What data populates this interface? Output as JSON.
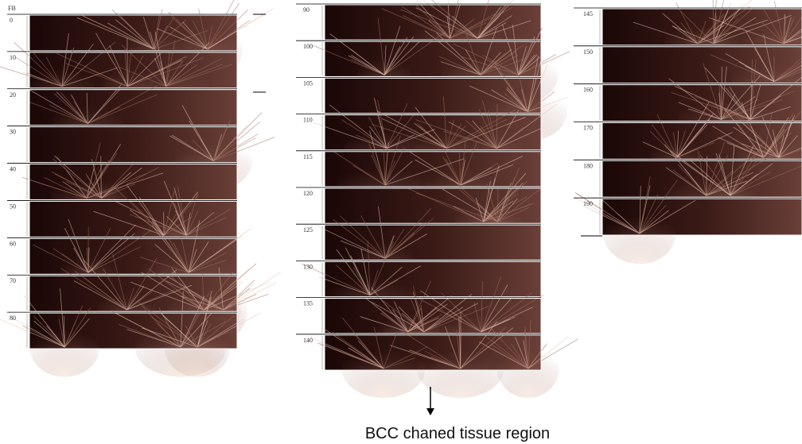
{
  "corner_label": "FB",
  "columns": [
    {
      "labels": [
        "0",
        "10",
        "20",
        "30",
        "40",
        "50",
        "60",
        "70",
        "80"
      ]
    },
    {
      "labels": [
        "90",
        "100",
        "105",
        "110",
        "115",
        "120",
        "125",
        "130",
        "135",
        "140"
      ]
    },
    {
      "labels": [
        "145",
        "150",
        "160",
        "170",
        "180",
        "190"
      ]
    }
  ],
  "caption": "BCC chaned tissue region"
}
